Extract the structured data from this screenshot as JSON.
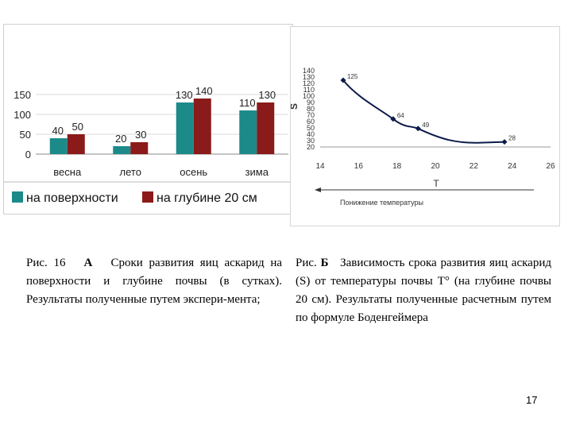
{
  "chart_data": [
    {
      "type": "bar",
      "categories": [
        "весна",
        "лето",
        "осень",
        "зима"
      ],
      "series": [
        {
          "name": "на поверхности",
          "values": [
            40,
            20,
            130,
            110
          ],
          "color": "#1d8a8a"
        },
        {
          "name": "на глубине 20 см",
          "values": [
            50,
            30,
            140,
            130
          ],
          "color": "#8b1a1a"
        }
      ],
      "yticks": [
        "0",
        "50",
        "100",
        "150"
      ],
      "ylim": [
        0,
        150
      ],
      "grid": true,
      "legend": "bottom"
    },
    {
      "type": "line",
      "x": [
        15.2,
        17.8,
        19.1,
        23.6
      ],
      "y": [
        125,
        64,
        49,
        28
      ],
      "point_labels": [
        "125",
        "64",
        "49",
        "28"
      ],
      "xticks": [
        "14",
        "16",
        "18",
        "20",
        "22",
        "24",
        "26"
      ],
      "yticks": [
        "20",
        "30",
        "40",
        "50",
        "60",
        "70",
        "80",
        "90",
        "100",
        "110",
        "120",
        "130",
        "140"
      ],
      "xlim": [
        14,
        26
      ],
      "ylim": [
        20,
        140
      ],
      "ylabel": "S",
      "xlabel": "T",
      "arrow_label": "Понижение температуры",
      "line_color": "#0d1b4a"
    }
  ],
  "captions": {
    "a": {
      "prefix": "Рис. 16",
      "letter": "А",
      "text": "Сроки развития яиц аскарид на поверхности и глубине почвы (в сутках). Результаты полученные путем экспери-мента;"
    },
    "b": {
      "prefix": "Рис.",
      "letter": "Б",
      "text": "Зависимость срока развития яиц аскарид (S) от температуры почвы T° (на глубине почвы 20 см). Результаты полученные расчетным путем по формуле Боденгеймера"
    }
  },
  "page_number": "17"
}
